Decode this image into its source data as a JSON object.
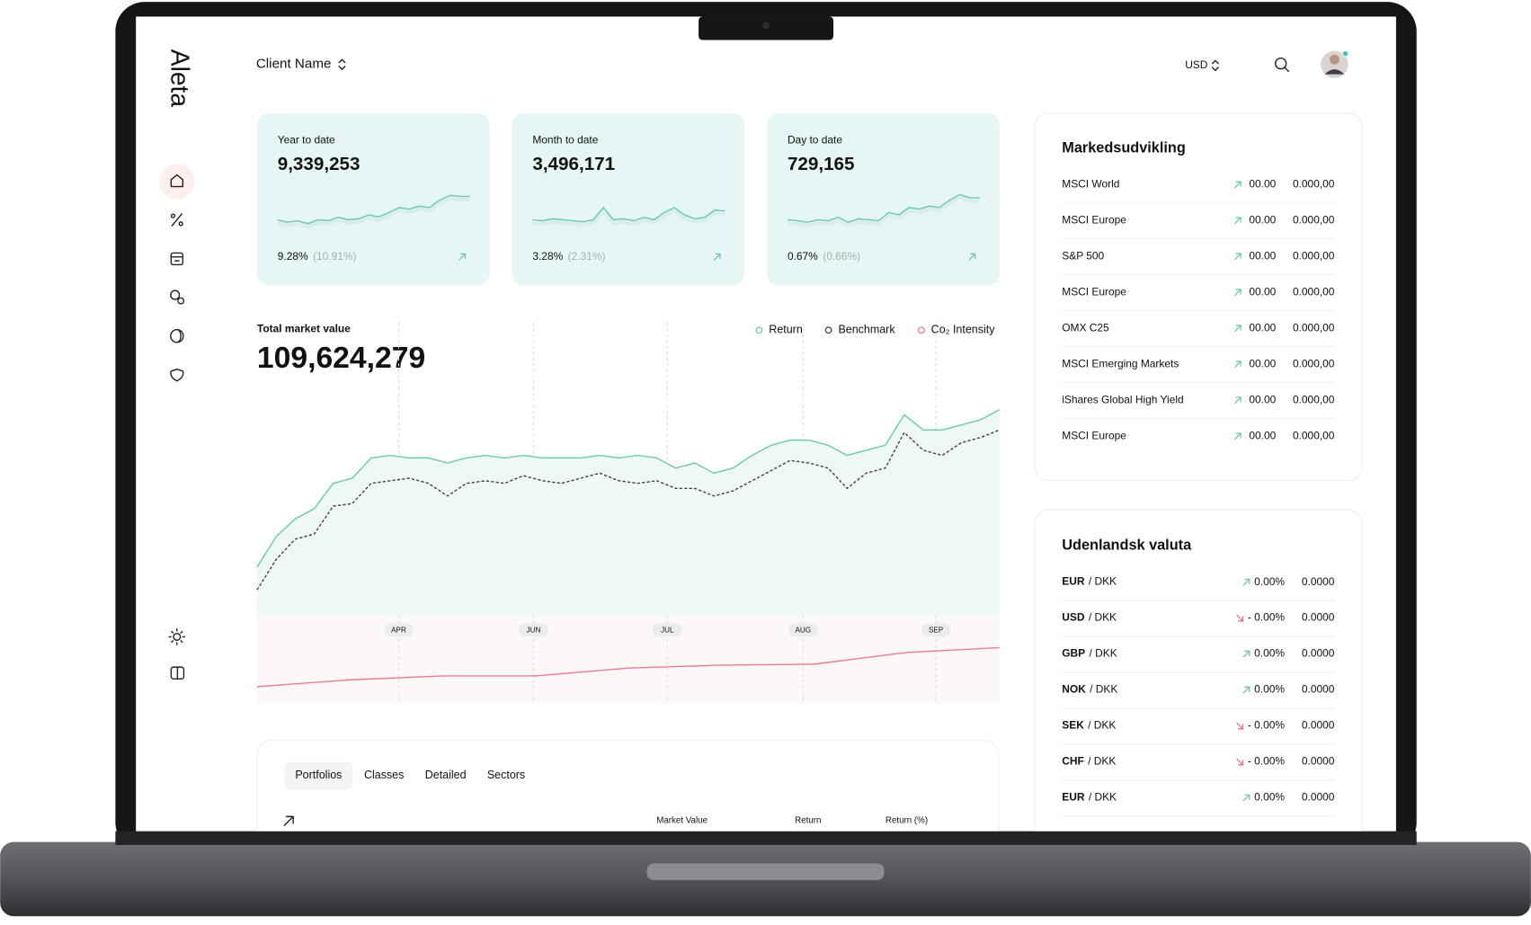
{
  "sidebar": {
    "logo": "Aleta"
  },
  "header": {
    "client": "Client Name",
    "currency": "USD"
  },
  "kpi_cards": [
    {
      "title": "Year to date",
      "value": "9,339,253",
      "change": "9.28%",
      "change_alt": "(10.91%)",
      "chart_data": {
        "type": "line",
        "color": "#6cc9ab",
        "ylim": [
          0,
          100
        ],
        "values": [
          30,
          25,
          28,
          22,
          30,
          28,
          35,
          30,
          32,
          40,
          36,
          45,
          55,
          52,
          58,
          55,
          70,
          80,
          78,
          78
        ]
      }
    },
    {
      "title": "Month to date",
      "value": "3,496,171",
      "change": "3.28%",
      "change_alt": "(2.31%)",
      "chart_data": {
        "type": "line",
        "color": "#6cc9ab",
        "ylim": [
          0,
          100
        ],
        "values": [
          30,
          28,
          32,
          30,
          28,
          26,
          30,
          55,
          30,
          32,
          28,
          35,
          30,
          45,
          55,
          40,
          32,
          35,
          50,
          48
        ]
      }
    },
    {
      "title": "Day to date",
      "value": "729,165",
      "change": "0.67%",
      "change_alt": "(0.66%)",
      "chart_data": {
        "type": "line",
        "color": "#6cc9ab",
        "ylim": [
          0,
          100
        ],
        "values": [
          30,
          28,
          25,
          30,
          28,
          35,
          25,
          32,
          30,
          28,
          45,
          40,
          55,
          52,
          58,
          55,
          70,
          82,
          75,
          75
        ]
      }
    }
  ],
  "market_chart": {
    "title": "Total market value",
    "value": "109,624,279",
    "month_labels": [
      "APR",
      "JUN",
      "JUL",
      "AUG",
      "SEP"
    ],
    "chart_data": {
      "type": "line",
      "ylim": [
        0,
        100
      ],
      "series": [
        {
          "name": "Return",
          "color": "#6cc9ab",
          "values": [
            19,
            31,
            38,
            42,
            52,
            54,
            62,
            63,
            62,
            62,
            60,
            62,
            63,
            62,
            63,
            62,
            62,
            62,
            63,
            62,
            63,
            62,
            58,
            60,
            56,
            58,
            63,
            67,
            69,
            69,
            67,
            63,
            65,
            67,
            79,
            73,
            73,
            75,
            77,
            81
          ]
        },
        {
          "name": "Benchmark",
          "color": "#444444",
          "dashed": true,
          "values": [
            10,
            22,
            30,
            32,
            43,
            44,
            52,
            53,
            54,
            52,
            47,
            52,
            53,
            52,
            55,
            53,
            52,
            54,
            56,
            53,
            52,
            53,
            50,
            50,
            47,
            49,
            53,
            57,
            61,
            60,
            58,
            50,
            56,
            58,
            72,
            65,
            63,
            68,
            70,
            73
          ]
        }
      ]
    },
    "co2_chart": {
      "type": "line",
      "ylim": [
        0,
        90
      ],
      "series": [
        {
          "name": "Co₂ Intensity",
          "color": "#f07a94",
          "values": [
            17,
            24,
            28,
            28,
            36,
            39,
            40,
            52,
            57
          ]
        }
      ]
    }
  },
  "markets": {
    "title": "Markedsudvikling",
    "rows": [
      {
        "name": "MSCI World",
        "change": "00.00",
        "value": "0.000,00",
        "trend": "up"
      },
      {
        "name": "MSCI Europe",
        "change": "00.00",
        "value": "0.000,00",
        "trend": "up"
      },
      {
        "name": "S&P 500",
        "change": "00.00",
        "value": "0.000,00",
        "trend": "up"
      },
      {
        "name": "MSCI Europe",
        "change": "00.00",
        "value": "0.000,00",
        "trend": "up"
      },
      {
        "name": "OMX C25",
        "change": "00.00",
        "value": "0.000,00",
        "trend": "up"
      },
      {
        "name": "MSCI Emerging Markets",
        "change": "00.00",
        "value": "0.000,00",
        "trend": "up"
      },
      {
        "name": "iShares Global High Yield",
        "change": "00.00",
        "value": "0.000,00",
        "trend": "up"
      },
      {
        "name": "MSCI Europe",
        "change": "00.00",
        "value": "0.000,00",
        "trend": "up"
      }
    ]
  },
  "currencies": {
    "title": "Udenlandsk valuta",
    "rows": [
      {
        "base": "EUR",
        "quote": "/ DKK",
        "change": "0.00%",
        "value": "0.0000",
        "trend": "up"
      },
      {
        "base": "USD",
        "quote": "/ DKK",
        "change": "- 0.00%",
        "value": "0.0000",
        "trend": "down"
      },
      {
        "base": "GBP",
        "quote": "/ DKK",
        "change": "0.00%",
        "value": "0.0000",
        "trend": "up"
      },
      {
        "base": "NOK",
        "quote": "/ DKK",
        "change": "0.00%",
        "value": "0.0000",
        "trend": "up"
      },
      {
        "base": "SEK",
        "quote": "/ DKK",
        "change": "- 0.00%",
        "value": "0.0000",
        "trend": "down"
      },
      {
        "base": "CHF",
        "quote": "/ DKK",
        "change": "- 0.00%",
        "value": "0.0000",
        "trend": "down"
      },
      {
        "base": "EUR",
        "quote": "/ DKK",
        "change": "0.00%",
        "value": "0.0000",
        "trend": "up"
      }
    ]
  },
  "holdings": {
    "tabs": [
      "Portfolios",
      "Classes",
      "Detailed",
      "Sectors"
    ],
    "active_tab": 0,
    "columns": [
      "Market Value",
      "Return",
      "Return (%)"
    ]
  }
}
